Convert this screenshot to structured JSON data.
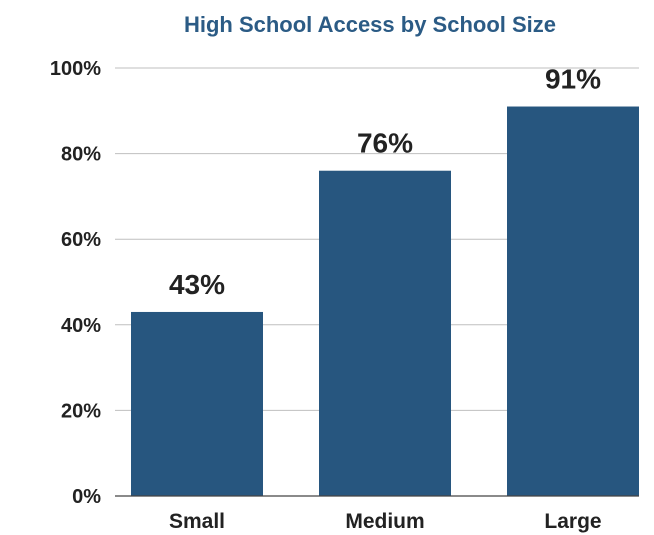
{
  "chart_data": {
    "type": "bar",
    "title": "High School Access by School Size",
    "categories": [
      "Small",
      "Medium",
      "Large"
    ],
    "values": [
      43,
      76,
      91
    ],
    "data_labels": [
      "43%",
      "76%",
      "91%"
    ],
    "ylim": [
      0,
      100
    ],
    "yticks": [
      {
        "value": 0,
        "label": "0%"
      },
      {
        "value": 20,
        "label": "20%"
      },
      {
        "value": 40,
        "label": "40%"
      },
      {
        "value": 60,
        "label": "60%"
      },
      {
        "value": 80,
        "label": "80%"
      },
      {
        "value": 100,
        "label": "100%"
      }
    ],
    "xlabel": "",
    "ylabel": "",
    "grid": true,
    "legend": "none",
    "colors": {
      "bar": "#27567f",
      "title": "#2b5b85",
      "text": "#222222",
      "grid": "#bfbfbf"
    }
  }
}
